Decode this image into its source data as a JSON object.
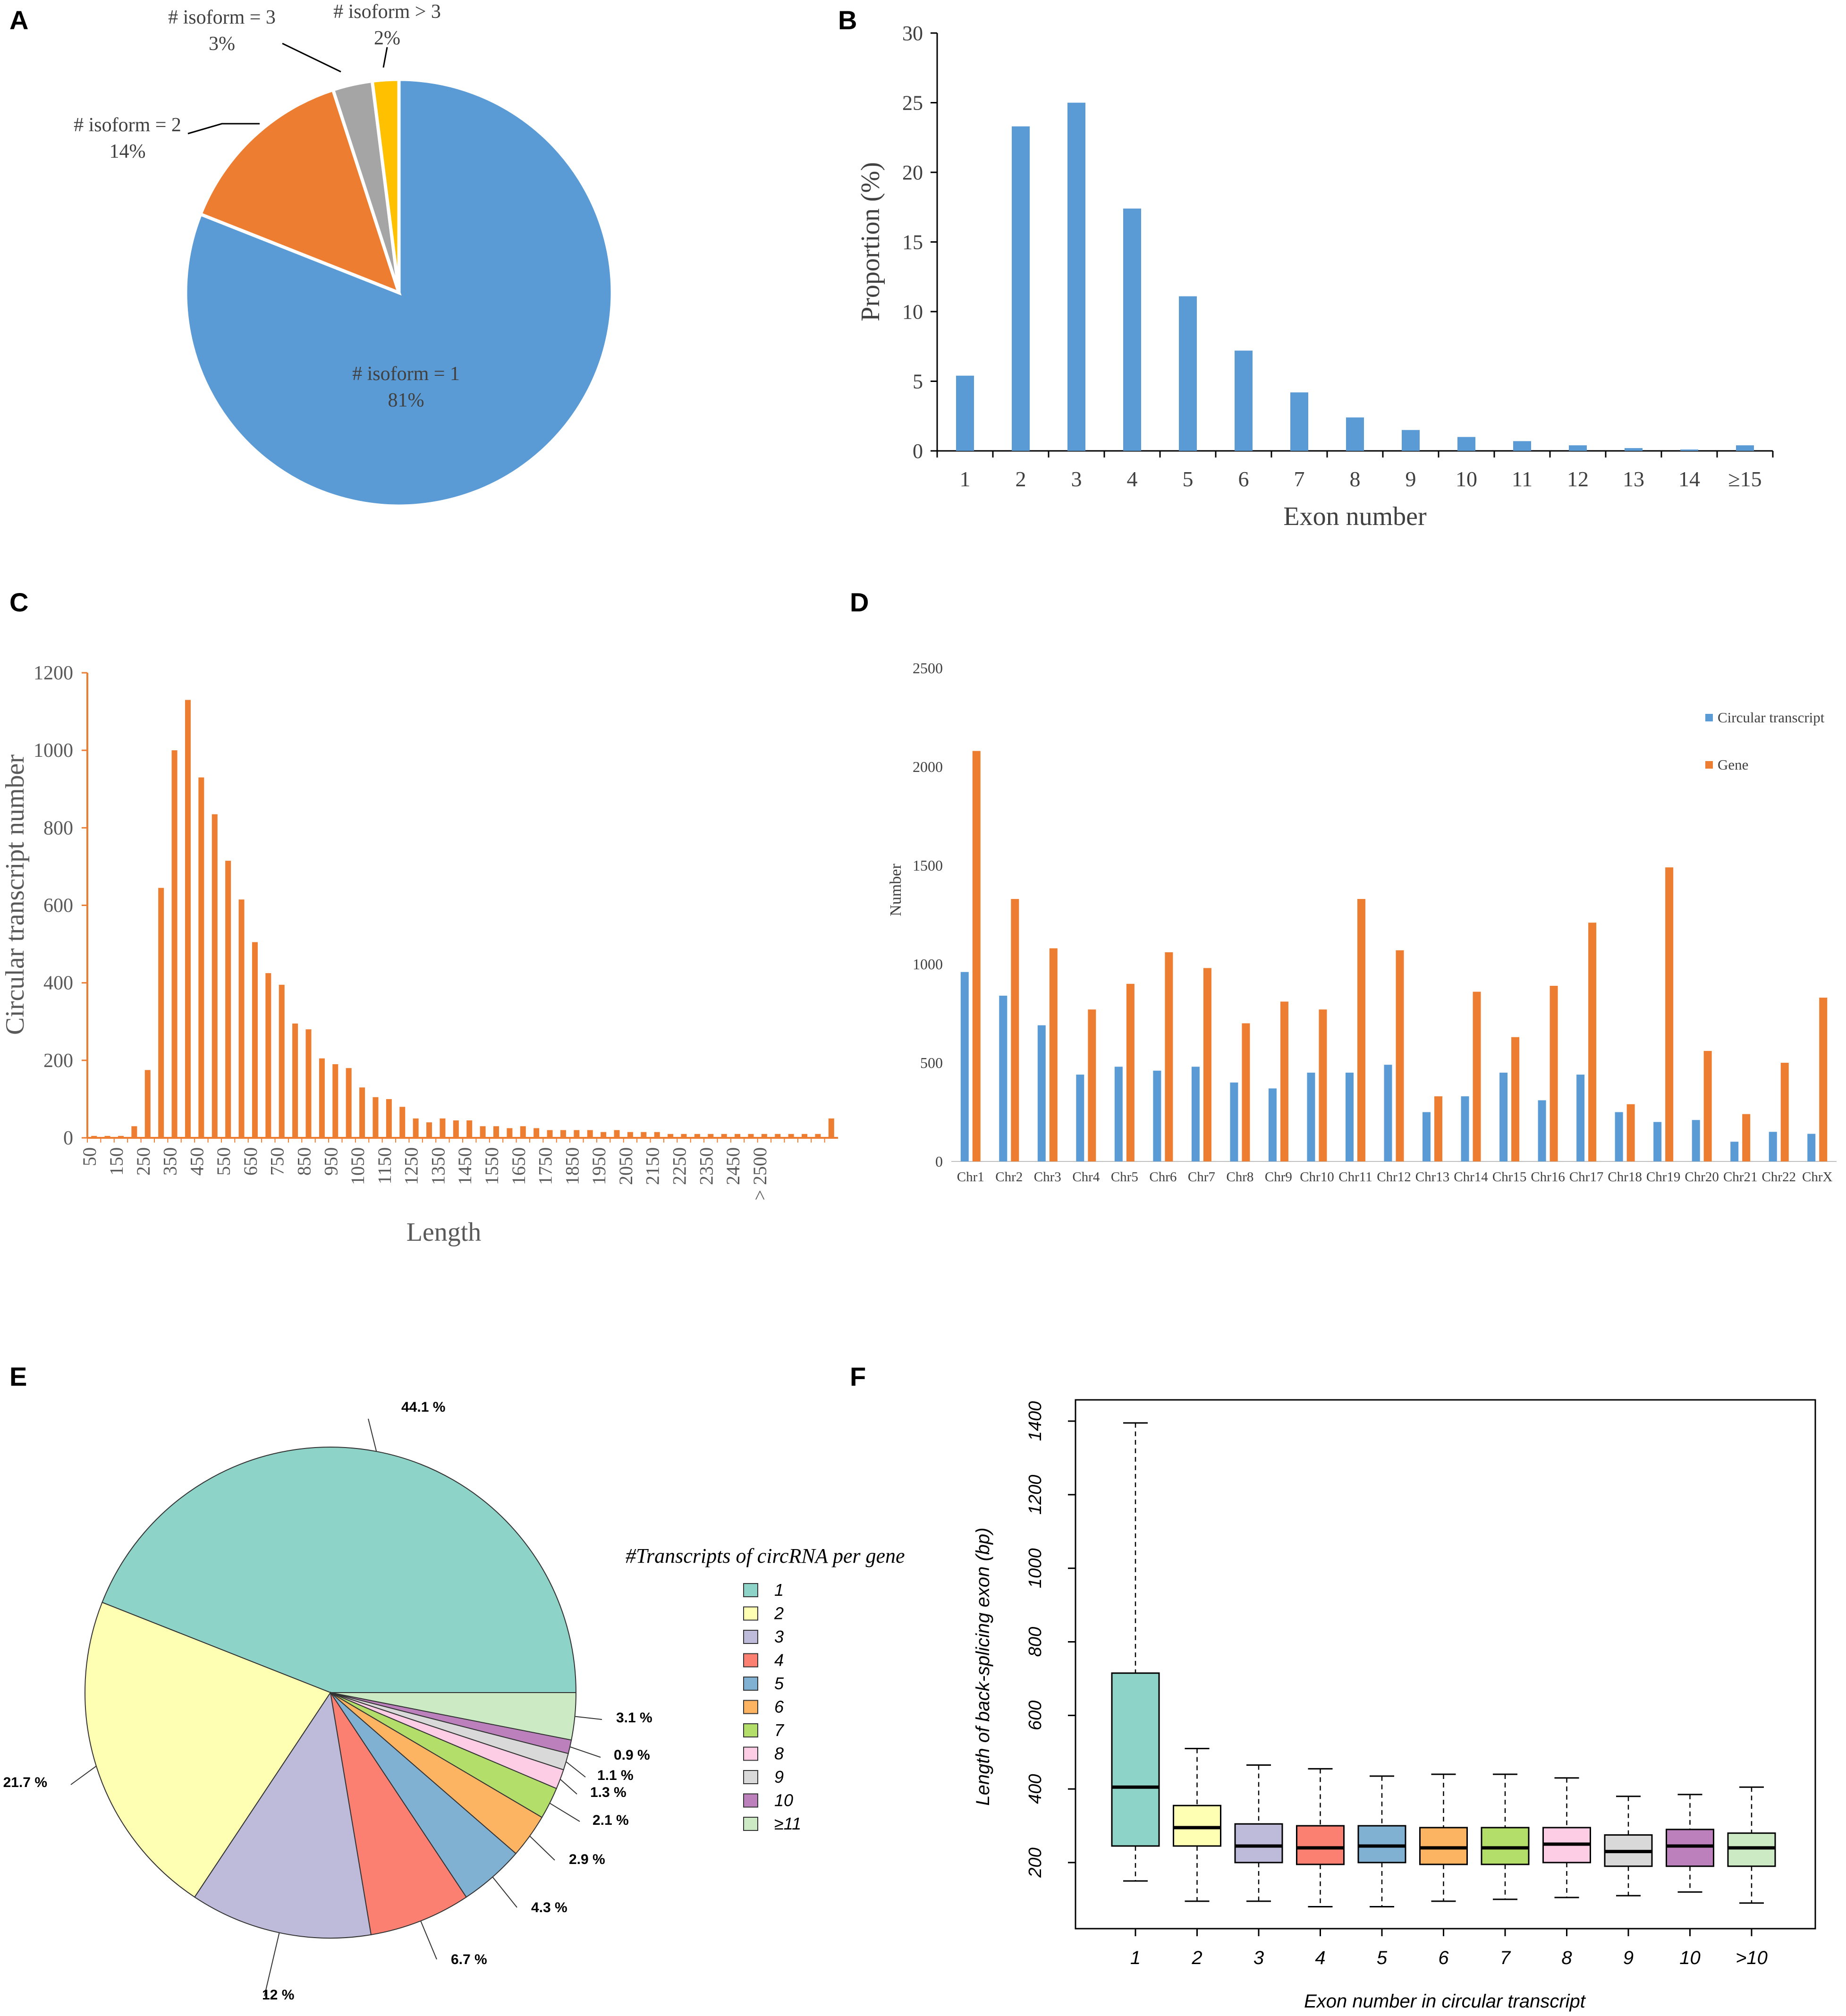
{
  "panel_letters": [
    "A",
    "B",
    "C",
    "D",
    "E",
    "F"
  ],
  "chart_data": [
    {
      "panel": "A",
      "type": "pie",
      "labels": [
        "# isoform = 1",
        "# isoform = 2",
        "# isoform = 3",
        "# isoform > 3"
      ],
      "pct_labels": [
        "81%",
        "14%",
        "3%",
        "2%"
      ],
      "values": [
        81,
        14,
        3,
        2
      ],
      "colors": [
        "#5b9bd5",
        "#ed7d31",
        "#a5a5a5",
        "#ffc000"
      ]
    },
    {
      "panel": "B",
      "type": "bar",
      "categories": [
        "1",
        "2",
        "3",
        "4",
        "5",
        "6",
        "7",
        "8",
        "9",
        "10",
        "11",
        "12",
        "13",
        "14",
        "≥15"
      ],
      "values": [
        5.4,
        23.3,
        25.0,
        17.4,
        11.1,
        7.2,
        4.2,
        2.4,
        1.5,
        1.0,
        0.7,
        0.4,
        0.2,
        0.1,
        0.4
      ],
      "xlabel": "Exon number",
      "ylabel": "Proportion (%)",
      "ylim": [
        0,
        30
      ],
      "yticks": [
        "0",
        "5",
        "10",
        "15",
        "20",
        "25",
        "30"
      ],
      "color": "#5b9bd5"
    },
    {
      "panel": "C",
      "type": "bar",
      "values": [
        5,
        5,
        5,
        30,
        175,
        645,
        1000,
        1130,
        930,
        835,
        715,
        615,
        505,
        425,
        395,
        295,
        280,
        205,
        190,
        180,
        130,
        105,
        100,
        80,
        50,
        40,
        50,
        45,
        45,
        30,
        30,
        25,
        30,
        25,
        20,
        20,
        20,
        20,
        15,
        20,
        15,
        15,
        15,
        10,
        10,
        10,
        10,
        10,
        10,
        10,
        10,
        10,
        10,
        10,
        10,
        50
      ],
      "tick_labels": [
        "50",
        "150",
        "250",
        "350",
        "450",
        "550",
        "650",
        "750",
        "850",
        "950",
        "1050",
        "1150",
        "1250",
        "1350",
        "1450",
        "1550",
        "1650",
        "1750",
        "1850",
        "1950",
        "2050",
        "2150",
        "2250",
        "2350",
        "2450",
        "> 2500"
      ],
      "xlabel": "Length",
      "ylabel": "Circular transcript number",
      "ylim": [
        0,
        1200
      ],
      "yticks": [
        "0",
        "200",
        "400",
        "600",
        "800",
        "1000",
        "1200"
      ],
      "color": "#ed7d31"
    },
    {
      "panel": "D",
      "type": "bar",
      "categories": [
        "Chr1",
        "Chr2",
        "Chr3",
        "Chr4",
        "Chr5",
        "Chr6",
        "Chr7",
        "Chr8",
        "Chr9",
        "Chr10",
        "Chr11",
        "Chr12",
        "Chr13",
        "Chr14",
        "Chr15",
        "Chr16",
        "Chr17",
        "Chr18",
        "Chr19",
        "Chr20",
        "Chr21",
        "Chr22",
        "ChrX"
      ],
      "series": [
        {
          "name": "Circular transcript",
          "color": "#5b9bd5",
          "values": [
            960,
            840,
            690,
            440,
            480,
            460,
            480,
            400,
            370,
            450,
            450,
            490,
            250,
            330,
            450,
            310,
            440,
            250,
            200,
            210,
            100,
            150,
            140
          ]
        },
        {
          "name": "Gene",
          "color": "#ed7d31",
          "values": [
            2080,
            1330,
            1080,
            770,
            900,
            1060,
            980,
            700,
            810,
            770,
            1330,
            1070,
            330,
            860,
            630,
            890,
            1210,
            290,
            1490,
            560,
            240,
            500,
            830
          ]
        }
      ],
      "ylabel": "Number",
      "ylim": [
        0,
        2500
      ],
      "yticks": [
        "0",
        "500",
        "1000",
        "1500",
        "2000",
        "2500"
      ]
    },
    {
      "panel": "E",
      "type": "pie",
      "legend_title": "#Transcripts of circRNA per gene",
      "labels": [
        "1",
        "2",
        "3",
        "4",
        "5",
        "6",
        "7",
        "8",
        "9",
        "10",
        "≥11"
      ],
      "values": [
        44.1,
        21.7,
        12,
        6.7,
        4.3,
        2.9,
        2.1,
        1.3,
        1.1,
        0.9,
        3.1
      ],
      "pct_labels": [
        "44.1 %",
        "21.7 %",
        "12 %",
        "6.7 %",
        "4.3 %",
        "2.9 %",
        "2.1 %",
        "1.3 %",
        "1.1 %",
        "0.9 %",
        "3.1 %"
      ],
      "colors": [
        "#8dd3c7",
        "#ffffb3",
        "#bebada",
        "#fb8072",
        "#80b1d3",
        "#fdb462",
        "#b3de69",
        "#fccde5",
        "#d9d9d9",
        "#bc80bd",
        "#ccebc5"
      ]
    },
    {
      "panel": "F",
      "type": "boxplot",
      "categories": [
        "1",
        "2",
        "3",
        "4",
        "5",
        "6",
        "7",
        "8",
        "9",
        "10",
        ">10"
      ],
      "boxes": [
        {
          "min": 150,
          "q1": 245,
          "median": 405,
          "q3": 715,
          "max": 1395
        },
        {
          "min": 95,
          "q1": 245,
          "median": 295,
          "q3": 355,
          "max": 510
        },
        {
          "min": 95,
          "q1": 200,
          "median": 245,
          "q3": 305,
          "max": 465
        },
        {
          "min": 80,
          "q1": 195,
          "median": 240,
          "q3": 300,
          "max": 455
        },
        {
          "min": 80,
          "q1": 200,
          "median": 245,
          "q3": 300,
          "max": 435
        },
        {
          "min": 95,
          "q1": 195,
          "median": 240,
          "q3": 295,
          "max": 440
        },
        {
          "min": 100,
          "q1": 195,
          "median": 240,
          "q3": 295,
          "max": 440
        },
        {
          "min": 105,
          "q1": 200,
          "median": 250,
          "q3": 295,
          "max": 430
        },
        {
          "min": 110,
          "q1": 190,
          "median": 230,
          "q3": 275,
          "max": 380
        },
        {
          "min": 120,
          "q1": 190,
          "median": 245,
          "q3": 290,
          "max": 385
        },
        {
          "min": 90,
          "q1": 190,
          "median": 240,
          "q3": 280,
          "max": 405
        }
      ],
      "colors": [
        "#8dd3c7",
        "#ffffb3",
        "#bebada",
        "#fb8072",
        "#80b1d3",
        "#fdb462",
        "#b3de69",
        "#fccde5",
        "#d9d9d9",
        "#bc80bd",
        "#ccebc5"
      ],
      "xlabel": "Exon number in circular transcript",
      "ylabel": "Length of back-splicing exon (bp)",
      "ylim": [
        0,
        1500
      ],
      "yticks": [
        "200",
        "400",
        "600",
        "800",
        "1000",
        "1200",
        "1400"
      ]
    }
  ]
}
